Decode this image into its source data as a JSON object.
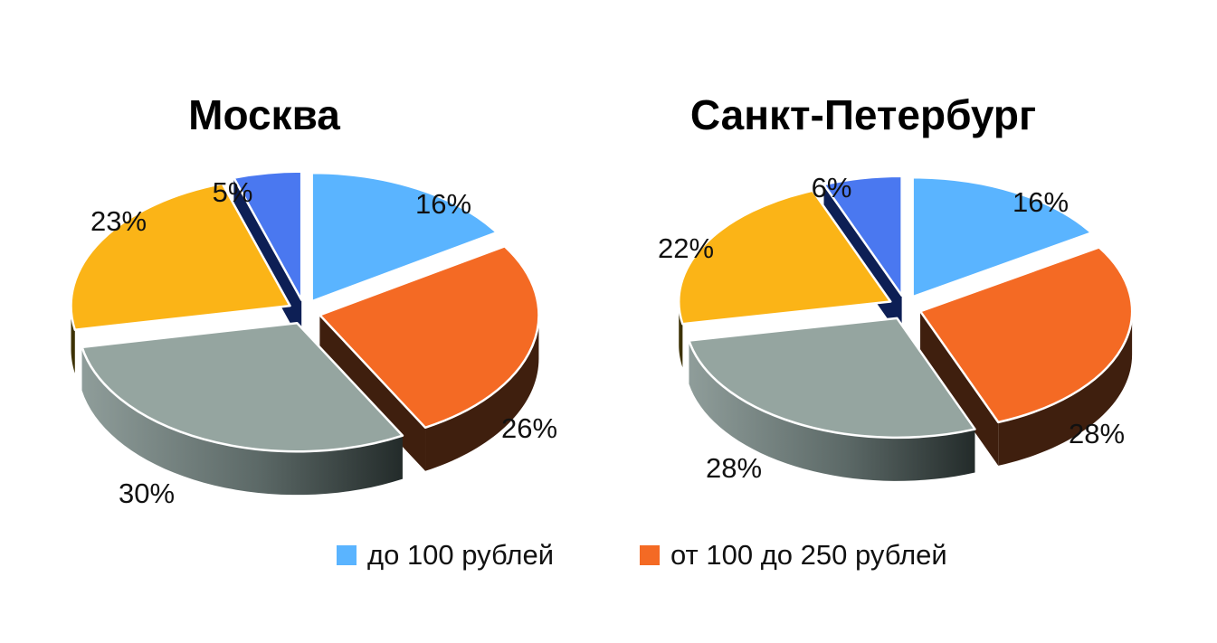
{
  "chart_data": [
    {
      "type": "pie",
      "title": "Москва",
      "slices": [
        {
          "name": "до 100 рублей",
          "value": 16,
          "label": "16%",
          "color": "#5ab4ff"
        },
        {
          "name": "от 100 до 250 рублей",
          "value": 26,
          "label": "26%",
          "color": "#f46a24"
        },
        {
          "name": "",
          "value": 30,
          "label": "30%",
          "color": "#95a5a0"
        },
        {
          "name": "",
          "value": 23,
          "label": "23%",
          "color": "#fbb417"
        },
        {
          "name": "",
          "value": 5,
          "label": "5%",
          "color": "#4a78f0"
        }
      ]
    },
    {
      "type": "pie",
      "title": "Санкт-Петербург",
      "slices": [
        {
          "name": "до 100 рублей",
          "value": 16,
          "label": "16%",
          "color": "#5ab4ff"
        },
        {
          "name": "от 100 до 250 рублей",
          "value": 28,
          "label": "28%",
          "color": "#f46a24"
        },
        {
          "name": "",
          "value": 28,
          "label": "28%",
          "color": "#95a5a0"
        },
        {
          "name": "",
          "value": 22,
          "label": "22%",
          "color": "#fbb417"
        },
        {
          "name": "",
          "value": 6,
          "label": "6%",
          "color": "#4a78f0"
        }
      ]
    }
  ],
  "legend": [
    {
      "label": "до 100 рублей",
      "color": "#5ab4ff"
    },
    {
      "label": "от 100 до 250 рублей",
      "color": "#f46a24"
    }
  ]
}
